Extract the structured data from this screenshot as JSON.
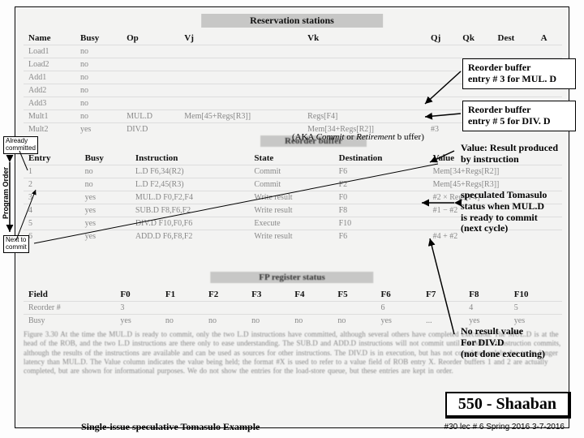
{
  "rs_title": "Reservation stations",
  "rs_cols": [
    "Name",
    "Busy",
    "Op",
    "Vj",
    "Vk",
    "Qj",
    "Qk",
    "Dest",
    "A"
  ],
  "rs_rows": [
    [
      "Load1",
      "no",
      "",
      "",
      "",
      "",
      "",
      "",
      ""
    ],
    [
      "Load2",
      "no",
      "",
      "",
      "",
      "",
      "",
      "",
      ""
    ],
    [
      "Add1",
      "no",
      "",
      "",
      "",
      "",
      "",
      "",
      ""
    ],
    [
      "Add2",
      "no",
      "",
      "",
      "",
      "",
      "",
      "",
      ""
    ],
    [
      "Add3",
      "no",
      "",
      "",
      "",
      "",
      "",
      "",
      ""
    ],
    [
      "Mult1",
      "no",
      "MUL.D",
      "Mem[45+Regs[R3]]",
      "Regs[F4]",
      "",
      "",
      "#3",
      ""
    ],
    [
      "Mult2",
      "yes",
      "DIV.D",
      "",
      "Mem[34+Regs[R2]]",
      "#3",
      "",
      "#5",
      ""
    ]
  ],
  "rob_title": "Reorder buffer",
  "rob_suffix": "(AKA Commit or Retirement buffer)",
  "rob_cols": [
    "Entry",
    "Busy",
    "Instruction",
    "State",
    "Destination",
    "Value"
  ],
  "rob_rows": [
    [
      "1",
      "no",
      "L.D   F6,34(R2)",
      "Commit",
      "F6",
      "Mem[34+Regs[R2]]"
    ],
    [
      "2",
      "no",
      "L.D   F2,45(R3)",
      "Commit",
      "F2",
      "Mem[45+Regs[R3]]"
    ],
    [
      "3",
      "yes",
      "MUL.D F0,F2,F4",
      "Write result",
      "F0",
      "#2 × Regs[F4]"
    ],
    [
      "4",
      "yes",
      "SUB.D F8,F6,F2",
      "Write result",
      "F8",
      "#1 − #2"
    ],
    [
      "5",
      "yes",
      "DIV.D F10,F0,F6",
      "Execute",
      "F10",
      ""
    ],
    [
      "6",
      "yes",
      "ADD.D F6,F8,F2",
      "Write result",
      "F6",
      "#4 + #2"
    ]
  ],
  "fpreg_title": "FP register status",
  "fpreg_cols": [
    "Field",
    "F0",
    "F1",
    "F2",
    "F3",
    "F4",
    "F5",
    "F6",
    "F7",
    "F8",
    "F10"
  ],
  "fpreg_rows": [
    [
      "Reorder #",
      "3",
      "",
      "",
      "",
      "",
      "",
      "6",
      "",
      "4",
      "5"
    ],
    [
      "Busy",
      "yes",
      "no",
      "no",
      "no",
      "no",
      "no",
      "yes",
      "...",
      "yes",
      "yes"
    ]
  ],
  "figtext": "Figure 3.30  At the time the MUL.D is ready to commit, only the two L.D instructions have committed, although several others have completed execution. The MUL.D is at the head of the ROB, and the two L.D instructions are there only to ease understanding. The SUB.D and ADD.D instructions will not commit until the MUL.D instruction commits, although the results of the instructions are available and can be used as sources for other instructions. The DIV.D is in execution, but has not completed solely due to its longer latency than MUL.D. The Value column indicates the value being held; the format #X is used to refer to a value field of ROB entry X. Reorder buffers 1 and 2 are actually completed, but are shown for informational purposes. We do not show the entries for the load-store queue, but these entries are kept in order.",
  "callout_mul": "Reorder buffer\nentry # 3 for MUL. D",
  "callout_div": "Reorder buffer\nentry # 5 for DIV. D",
  "callout_value": "Value: Result produced\nby instruction",
  "callout_spec": "speculated Tomasulo\nstatus when MUL.D\nis ready  to commit\n(next cycle)",
  "callout_noresult": "No result value\nFor DIV.D\n(not done executing)",
  "label_already": "Already\ncommitted",
  "label_nextto": "Next to\ncommit",
  "label_program_order": "Program  Order",
  "footer_title": "Single-issue speculative Tomasulo Example",
  "course": "550 - Shaaban",
  "course_meta": "#30   lec # 6   Spring 2016   3-7-2016",
  "colors": {
    "title_bg": "#c7c7c6",
    "faded_text": "#888888",
    "border": "#000000"
  }
}
